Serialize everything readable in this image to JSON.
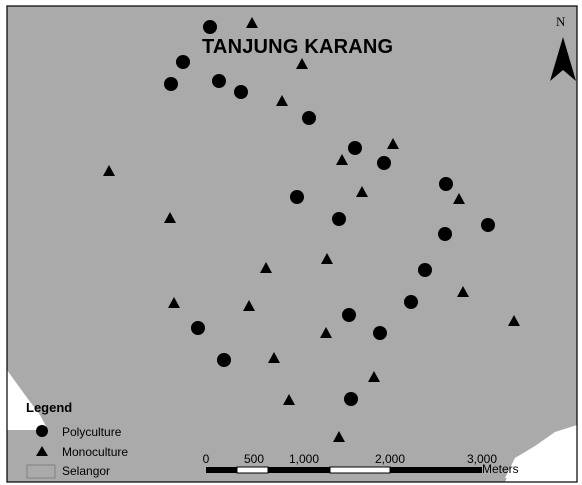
{
  "map": {
    "title": "TANJUNG KARANG",
    "north_label": "N",
    "colors": {
      "land": "#aaaaaa",
      "sea": "#ffffff",
      "marker": "#000000",
      "border": "#000000"
    }
  },
  "legend": {
    "title": "Legend",
    "items": [
      {
        "label": "Polyculture",
        "icon": "filled-circle-icon"
      },
      {
        "label": "Monoculture",
        "icon": "filled-triangle-icon"
      },
      {
        "label": "Selangor",
        "icon": "gray-rectangle-icon"
      }
    ]
  },
  "scale_bar": {
    "ticks": [
      "0",
      "500",
      "1,000",
      "2,000",
      "3,000"
    ],
    "unit": "Meters"
  }
}
